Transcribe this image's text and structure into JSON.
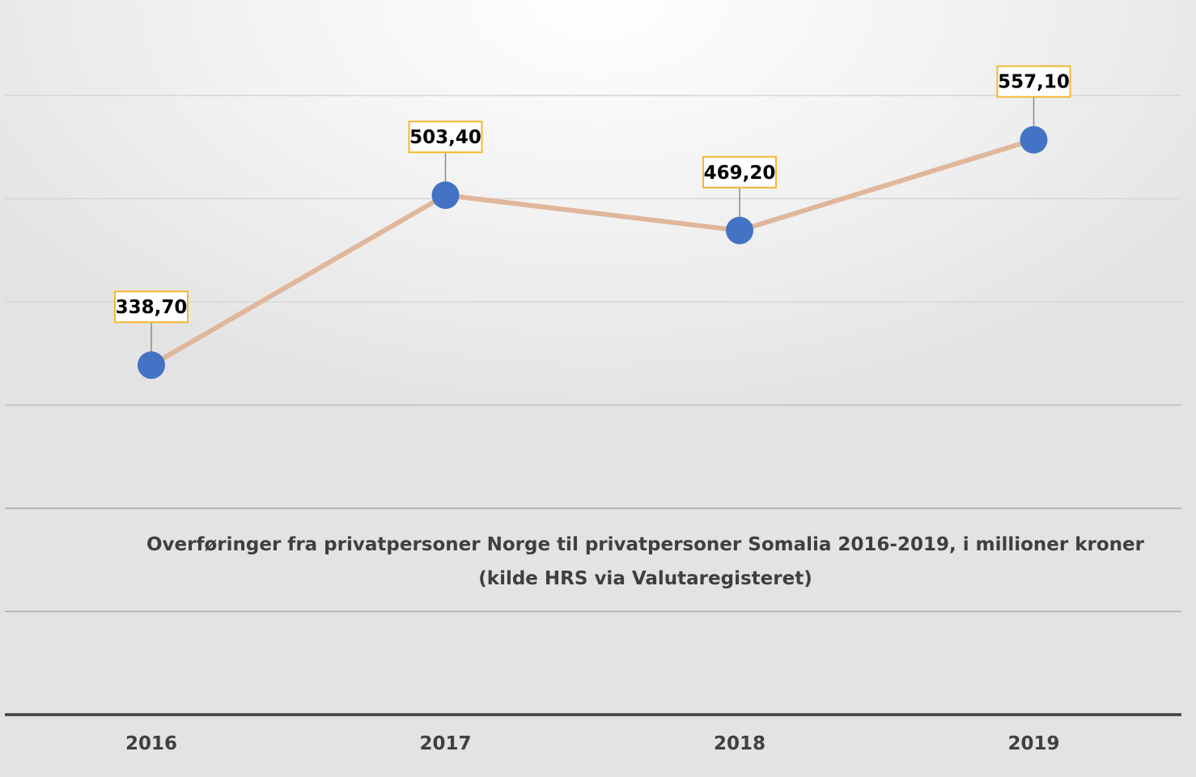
{
  "chart_data": {
    "type": "line",
    "title": "Overføringer fra privatpersoner Norge til privatpersoner Somalia 2016-2019, i millioner kroner",
    "subtitle": "(kilde HRS via Valutaregisteret)",
    "categories": [
      "2016",
      "2017",
      "2018",
      "2019"
    ],
    "series": [
      {
        "values": [
          338.7,
          503.4,
          469.2,
          557.1
        ],
        "data_labels": [
          "338,70",
          "503,40",
          "469,20",
          "557,10"
        ]
      }
    ],
    "ylim": [
      0,
      600
    ],
    "grid": true,
    "legend": "none",
    "xlabel": "",
    "ylabel": "",
    "colors": {
      "line": "#e0b79b",
      "marker": "#4472c4",
      "label_border": "#f5b731",
      "gridline": "#d0d0d0",
      "axis": "#404040"
    }
  }
}
